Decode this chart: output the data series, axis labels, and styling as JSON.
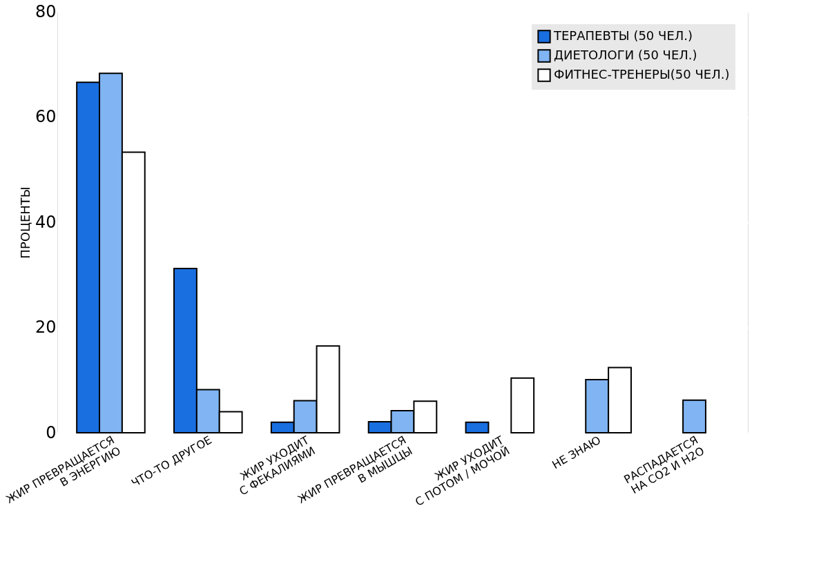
{
  "chart_data": {
    "type": "bar",
    "ylabel": "ПРОЦЕНТЫ",
    "categories": [
      "ЖИР ПРЕВРАЩАЕТСЯ\nВ ЭНЕРГИЮ",
      "ЧТО-ТО ДРУГОЕ",
      "ЖИР УХОДИТ\nС ФЕКАЛИЯМИ",
      "ЖИР ПРЕВРАЩАЕТСЯ\nВ МЫШЦЫ",
      "ЖИР УХОДИТ\nС ПОТОМ / МОЧОЙ",
      "НЕ ЗНАЮ",
      "РАСПАДАЕТСЯ\nНА CO2 И H2O"
    ],
    "series": [
      {
        "name": "ТЕРАПЕВТЫ (50 ЧЕЛ.)",
        "color": "#1a6fe0",
        "values": [
          66.6,
          31.2,
          2.0,
          2.1,
          2.0,
          null,
          null
        ]
      },
      {
        "name": "ДИЕТОЛОГИ (50 ЧЕЛ.)",
        "color": "#80b4f2",
        "values": [
          68.3,
          8.2,
          6.1,
          4.2,
          null,
          10.1,
          6.2
        ]
      },
      {
        "name": "ФИТНЕС-ТРЕНЕРЫ(50 ЧЕЛ.)",
        "color": "#ffffff",
        "values": [
          53.3,
          4.0,
          16.5,
          6.0,
          10.4,
          12.4,
          null
        ]
      }
    ],
    "ylim": [
      0,
      80
    ],
    "yticks": [
      0,
      20,
      40,
      60,
      80
    ],
    "grid": "y",
    "legend": "top right"
  }
}
